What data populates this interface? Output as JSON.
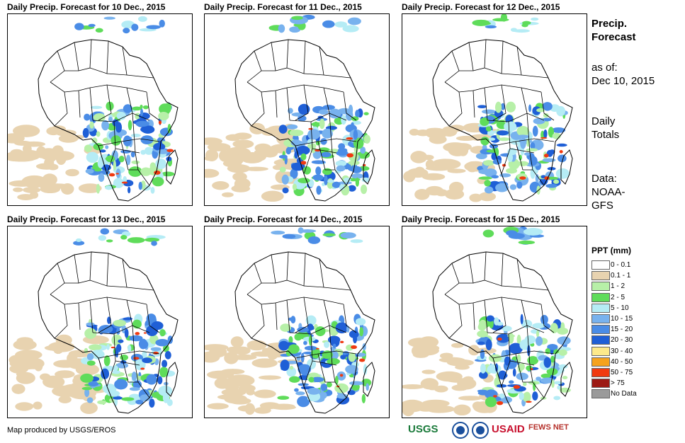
{
  "panels": [
    {
      "title": "Daily Precip. Forecast for 10 Dec., 2015"
    },
    {
      "title": "Daily Precip. Forecast for 11 Dec., 2015"
    },
    {
      "title": "Daily Precip. Forecast for 12 Dec., 2015"
    },
    {
      "title": "Daily Precip. Forecast for 13 Dec., 2015"
    },
    {
      "title": "Daily Precip. Forecast for 14 Dec., 2015"
    },
    {
      "title": "Daily Precip. Forecast for 15 Dec., 2015"
    }
  ],
  "sidebar": {
    "title_line1": "Precip.",
    "title_line2": "Forecast",
    "asof_line1": "as of:",
    "asof_line2": "Dec 10, 2015",
    "totals_line1": "Daily",
    "totals_line2": "Totals",
    "source_line1": "Data:",
    "source_line2": "NOAA-",
    "source_line3": "GFS"
  },
  "legend": {
    "title": "PPT (mm)",
    "items": [
      {
        "label": "0 - 0.1",
        "color": "#ffffff"
      },
      {
        "label": "0.1 - 1",
        "color": "#e8d3b0"
      },
      {
        "label": "1 - 2",
        "color": "#b7f0a8"
      },
      {
        "label": "2 - 5",
        "color": "#5fdc5a"
      },
      {
        "label": "5 - 10",
        "color": "#b5ecf5"
      },
      {
        "label": "10 - 15",
        "color": "#78b2ee"
      },
      {
        "label": "15 - 20",
        "color": "#4a8ce6"
      },
      {
        "label": "20 - 30",
        "color": "#1f5fd6"
      },
      {
        "label": "30 - 40",
        "color": "#fde98a"
      },
      {
        "label": "40 - 50",
        "color": "#f5a21e"
      },
      {
        "label": "50 - 75",
        "color": "#f03a10"
      },
      {
        "label": "> 75",
        "color": "#9c1a14"
      },
      {
        "label": "No Data",
        "color": "#9a9a9a"
      }
    ]
  },
  "footer": {
    "credit": "Map produced by USGS/EROS"
  },
  "logos": [
    {
      "name": "USGS",
      "text": "USGS",
      "color": "#1a7a3a"
    },
    {
      "name": "NOAA",
      "text": "NOAA",
      "color": "#1a4f9c"
    },
    {
      "name": "DOI",
      "text": "DOI",
      "color": "#1a4f9c"
    },
    {
      "name": "USAID",
      "text": "USAID",
      "color": "#c8102e"
    },
    {
      "name": "FEWS NET",
      "text": "FEWS NET",
      "color": "#b5302a"
    }
  ]
}
